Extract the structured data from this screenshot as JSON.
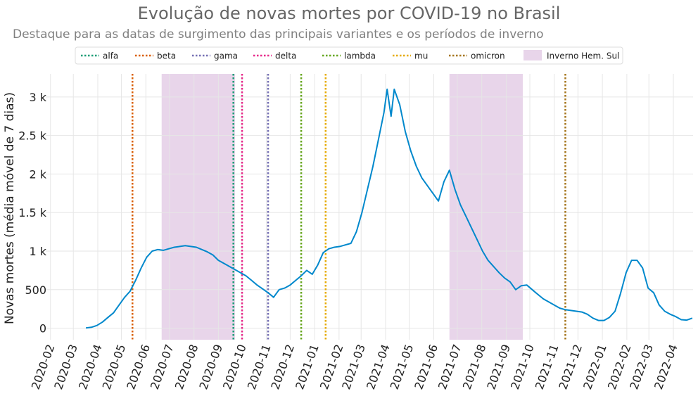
{
  "chart_data": {
    "type": "line",
    "title": "Evolução de novas mortes por COVID-19 no Brasil",
    "subtitle": "Destaque para as datas de surgimento das principais variantes e os períodos de inverno",
    "ylabel": "Novas mortes (média móvel de 7 dias)",
    "xlabel": "",
    "ylim": [
      -150,
      3300
    ],
    "xlim": [
      "2020-01-26",
      "2022-04-26"
    ],
    "grid": true,
    "legend_position": "top",
    "line_color": "#0088cc",
    "x_ticks": [
      "2020-02",
      "2020-03",
      "2020-04",
      "2020-05",
      "2020-06",
      "2020-07",
      "2020-08",
      "2020-09",
      "2020-10",
      "2020-11",
      "2020-12",
      "2021-01",
      "2021-02",
      "2021-03",
      "2021-04",
      "2021-05",
      "2021-06",
      "2021-07",
      "2021-08",
      "2021-09",
      "2021-10",
      "2021-11",
      "2021-12",
      "2022-01",
      "2022-02",
      "2022-03",
      "2022-04"
    ],
    "y_ticks": [
      {
        "value": 0,
        "label": "0"
      },
      {
        "value": 500,
        "label": "500"
      },
      {
        "value": 1000,
        "label": "1 k"
      },
      {
        "value": 1500,
        "label": "1.5 k"
      },
      {
        "value": 2000,
        "label": "2 k"
      },
      {
        "value": 2500,
        "label": "2.5 k"
      },
      {
        "value": 3000,
        "label": "3 k"
      }
    ],
    "variants": [
      {
        "name": "alfa",
        "date": "2020-09-20",
        "color": "#1b9e77"
      },
      {
        "name": "beta",
        "date": "2020-05-15",
        "color": "#d95f02"
      },
      {
        "name": "gama",
        "date": "2020-11-03",
        "color": "#7570b3"
      },
      {
        "name": "delta",
        "date": "2020-10-01",
        "color": "#e7298a"
      },
      {
        "name": "lambda",
        "date": "2020-12-15",
        "color": "#66a61e"
      },
      {
        "name": "mu",
        "date": "2021-01-15",
        "color": "#e6ab02"
      },
      {
        "name": "omicron",
        "date": "2021-11-15",
        "color": "#a6761d"
      }
    ],
    "winters": [
      {
        "start": "2020-06-21",
        "end": "2020-09-22"
      },
      {
        "start": "2021-06-21",
        "end": "2021-09-22"
      }
    ],
    "winter_label": "Inverno Hem. Sul",
    "winter_color": "#e8d5ea",
    "series": [
      {
        "points": [
          [
            "2020-03-17",
            3
          ],
          [
            "2020-03-24",
            12
          ],
          [
            "2020-03-31",
            35
          ],
          [
            "2020-04-07",
            80
          ],
          [
            "2020-04-14",
            140
          ],
          [
            "2020-04-21",
            200
          ],
          [
            "2020-04-28",
            300
          ],
          [
            "2020-05-05",
            400
          ],
          [
            "2020-05-12",
            480
          ],
          [
            "2020-05-19",
            620
          ],
          [
            "2020-05-26",
            780
          ],
          [
            "2020-06-02",
            920
          ],
          [
            "2020-06-09",
            1000
          ],
          [
            "2020-06-16",
            1020
          ],
          [
            "2020-06-23",
            1010
          ],
          [
            "2020-06-30",
            1030
          ],
          [
            "2020-07-07",
            1050
          ],
          [
            "2020-07-14",
            1060
          ],
          [
            "2020-07-21",
            1070
          ],
          [
            "2020-07-28",
            1060
          ],
          [
            "2020-08-04",
            1050
          ],
          [
            "2020-08-11",
            1020
          ],
          [
            "2020-08-18",
            990
          ],
          [
            "2020-08-25",
            950
          ],
          [
            "2020-09-01",
            880
          ],
          [
            "2020-09-08",
            840
          ],
          [
            "2020-09-15",
            800
          ],
          [
            "2020-09-22",
            760
          ],
          [
            "2020-09-29",
            720
          ],
          [
            "2020-10-06",
            680
          ],
          [
            "2020-10-13",
            620
          ],
          [
            "2020-10-20",
            560
          ],
          [
            "2020-10-27",
            510
          ],
          [
            "2020-11-03",
            460
          ],
          [
            "2020-11-10",
            400
          ],
          [
            "2020-11-17",
            500
          ],
          [
            "2020-11-24",
            520
          ],
          [
            "2020-12-01",
            560
          ],
          [
            "2020-12-08",
            620
          ],
          [
            "2020-12-15",
            680
          ],
          [
            "2020-12-22",
            750
          ],
          [
            "2020-12-29",
            700
          ],
          [
            "2021-01-05",
            820
          ],
          [
            "2021-01-12",
            980
          ],
          [
            "2021-01-19",
            1030
          ],
          [
            "2021-01-26",
            1050
          ],
          [
            "2021-02-02",
            1060
          ],
          [
            "2021-02-09",
            1080
          ],
          [
            "2021-02-16",
            1100
          ],
          [
            "2021-02-23",
            1250
          ],
          [
            "2021-03-02",
            1500
          ],
          [
            "2021-03-09",
            1800
          ],
          [
            "2021-03-16",
            2100
          ],
          [
            "2021-03-23",
            2450
          ],
          [
            "2021-03-30",
            2800
          ],
          [
            "2021-04-03",
            3100
          ],
          [
            "2021-04-08",
            2750
          ],
          [
            "2021-04-12",
            3100
          ],
          [
            "2021-04-19",
            2900
          ],
          [
            "2021-04-26",
            2550
          ],
          [
            "2021-05-03",
            2300
          ],
          [
            "2021-05-10",
            2100
          ],
          [
            "2021-05-17",
            1950
          ],
          [
            "2021-05-24",
            1850
          ],
          [
            "2021-05-31",
            1750
          ],
          [
            "2021-06-07",
            1650
          ],
          [
            "2021-06-14",
            1900
          ],
          [
            "2021-06-21",
            2050
          ],
          [
            "2021-06-28",
            1800
          ],
          [
            "2021-07-05",
            1600
          ],
          [
            "2021-07-12",
            1450
          ],
          [
            "2021-07-19",
            1300
          ],
          [
            "2021-07-26",
            1150
          ],
          [
            "2021-08-02",
            1000
          ],
          [
            "2021-08-09",
            880
          ],
          [
            "2021-08-16",
            800
          ],
          [
            "2021-08-23",
            720
          ],
          [
            "2021-08-30",
            650
          ],
          [
            "2021-09-06",
            600
          ],
          [
            "2021-09-13",
            500
          ],
          [
            "2021-09-20",
            550
          ],
          [
            "2021-09-27",
            560
          ],
          [
            "2021-10-04",
            500
          ],
          [
            "2021-10-11",
            440
          ],
          [
            "2021-10-18",
            380
          ],
          [
            "2021-10-25",
            340
          ],
          [
            "2021-11-01",
            300
          ],
          [
            "2021-11-08",
            260
          ],
          [
            "2021-11-15",
            240
          ],
          [
            "2021-11-22",
            230
          ],
          [
            "2021-11-29",
            220
          ],
          [
            "2021-12-06",
            210
          ],
          [
            "2021-12-13",
            180
          ],
          [
            "2021-12-20",
            130
          ],
          [
            "2021-12-27",
            100
          ],
          [
            "2022-01-03",
            100
          ],
          [
            "2022-01-10",
            140
          ],
          [
            "2022-01-17",
            220
          ],
          [
            "2022-01-24",
            450
          ],
          [
            "2022-01-31",
            720
          ],
          [
            "2022-02-07",
            880
          ],
          [
            "2022-02-14",
            880
          ],
          [
            "2022-02-21",
            780
          ],
          [
            "2022-02-28",
            520
          ],
          [
            "2022-03-07",
            460
          ],
          [
            "2022-03-14",
            300
          ],
          [
            "2022-03-21",
            220
          ],
          [
            "2022-03-28",
            180
          ],
          [
            "2022-04-04",
            150
          ],
          [
            "2022-04-11",
            110
          ],
          [
            "2022-04-18",
            105
          ],
          [
            "2022-04-25",
            130
          ]
        ]
      }
    ]
  }
}
